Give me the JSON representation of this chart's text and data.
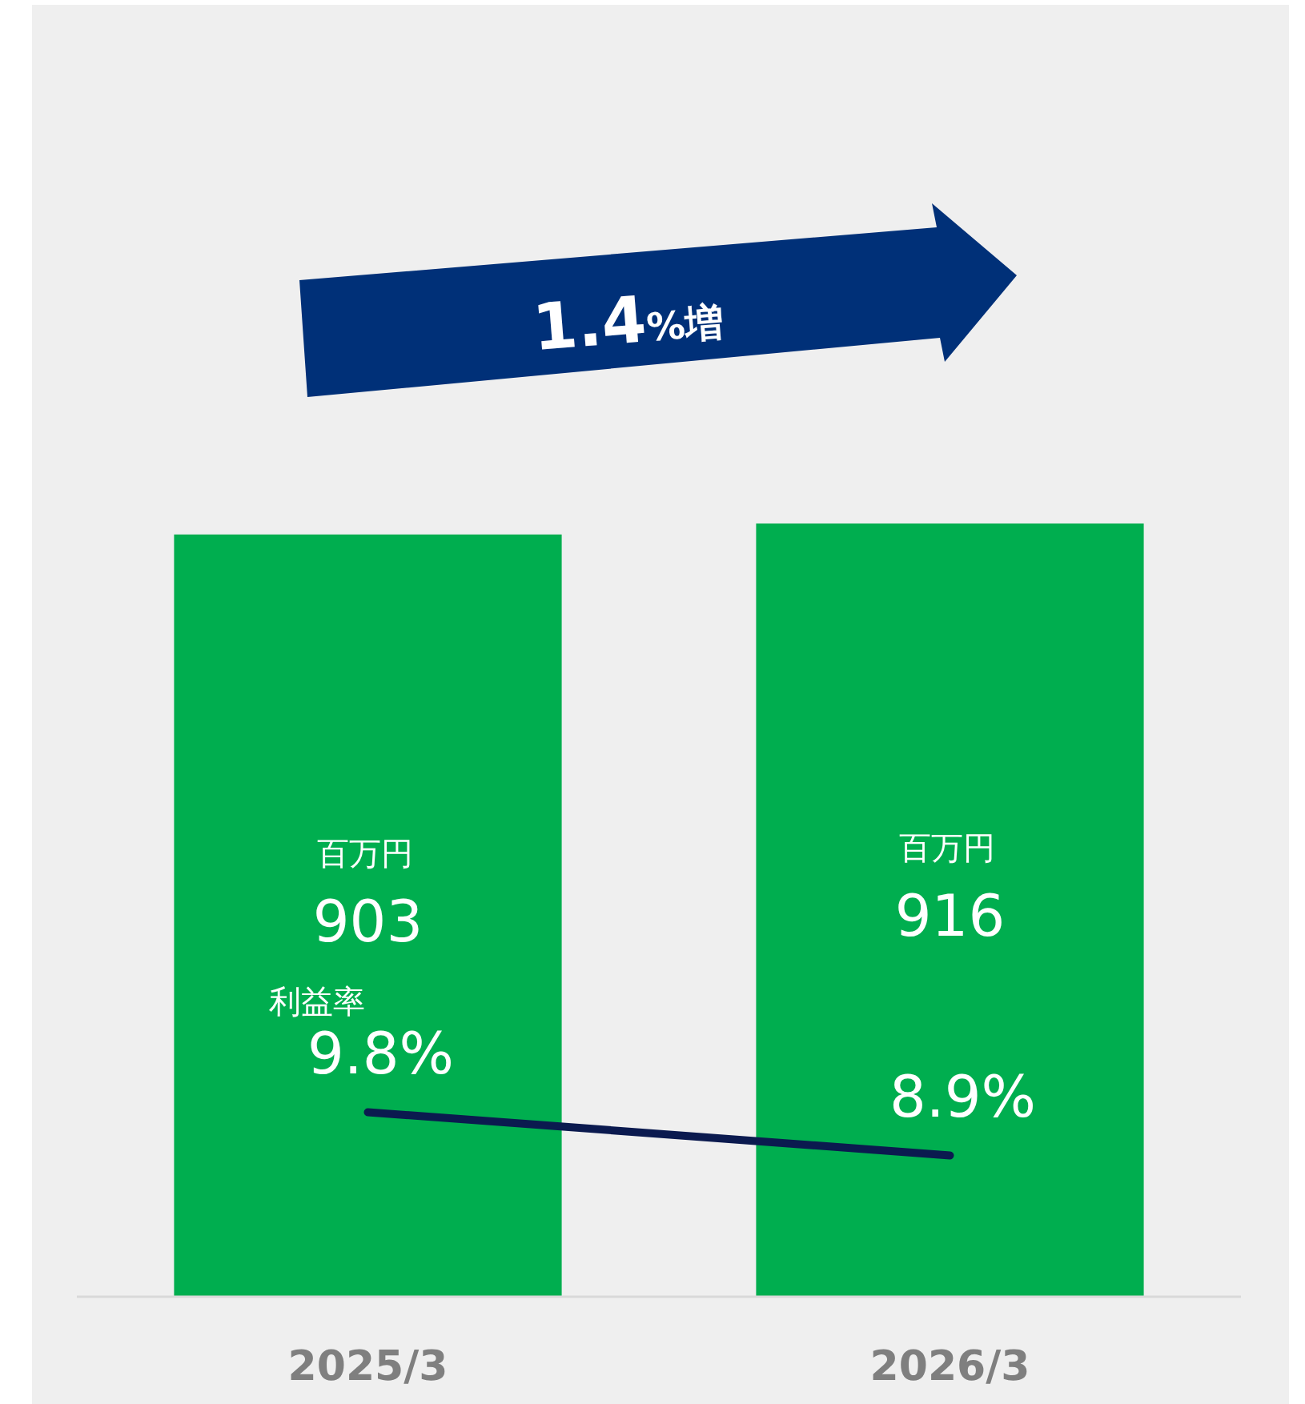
{
  "chart_data": {
    "type": "bar",
    "categories": [
      "2025/3",
      "2026/3"
    ],
    "tick_labels": "x",
    "data_labels": true,
    "series": [
      {
        "color": "#00ae4f",
        "values": [
          903,
          916
        ]
      },
      {
        "type": "line",
        "axis": "y2",
        "color": "#0b1a4f",
        "values": [
          9.8,
          8.9
        ],
        "value_labels": [
          "9.8%",
          "8.9%"
        ]
      }
    ],
    "annotations": [
      "1.4%増",
      "百万円",
      "百万円",
      "利益率"
    ]
  }
}
